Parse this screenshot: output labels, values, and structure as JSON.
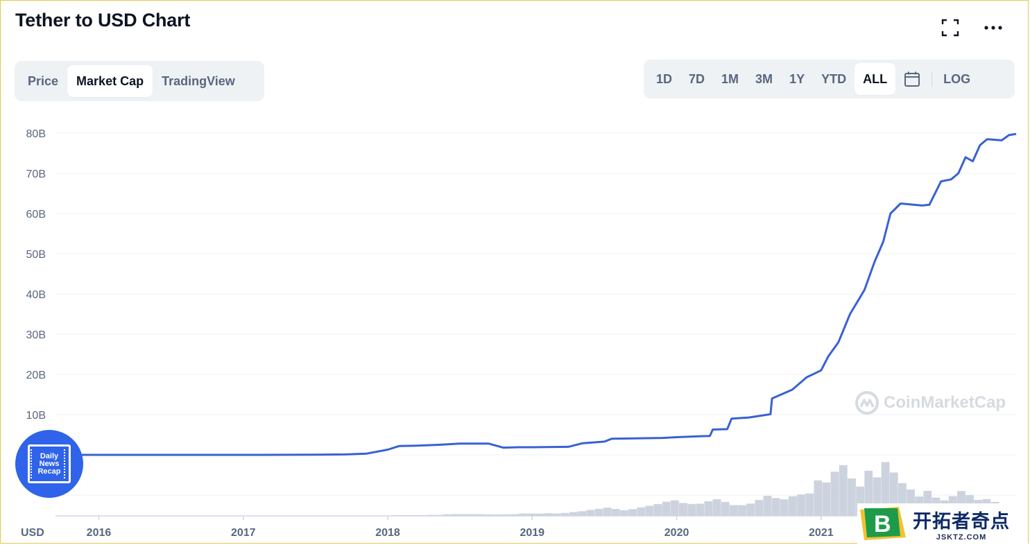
{
  "header": {
    "title": "Tether to USD Chart"
  },
  "view_tabs": [
    {
      "label": "Price",
      "active": false
    },
    {
      "label": "Market Cap",
      "active": true
    },
    {
      "label": "TradingView",
      "active": false
    }
  ],
  "range_tabs": [
    {
      "label": "1D",
      "active": false
    },
    {
      "label": "7D",
      "active": false
    },
    {
      "label": "1M",
      "active": false
    },
    {
      "label": "3M",
      "active": false
    },
    {
      "label": "1Y",
      "active": false
    },
    {
      "label": "YTD",
      "active": false
    },
    {
      "label": "ALL",
      "active": true
    }
  ],
  "log_label": "LOG",
  "icons": {
    "fullscreen": "fullscreen-icon",
    "more": "more-icon",
    "calendar": "calendar-icon"
  },
  "colors": {
    "line": "#3861d4",
    "volume": "#cdd3de",
    "grid": "#eff2f5",
    "axis_text": "#58667e"
  },
  "watermark": "CoinMarketCap",
  "badge": [
    "Daily",
    "News",
    "Recap"
  ],
  "site_badge": {
    "cn": "开拓者奇点",
    "en": "JSKTZ.COM"
  },
  "chart_data": {
    "type": "line",
    "currency_label": "USD",
    "x_ticks": [
      "2016",
      "2017",
      "2018",
      "2019",
      "2020",
      "2021"
    ],
    "y_ticks": [
      "80B",
      "70B",
      "60B",
      "50B",
      "40B",
      "30B",
      "20B",
      "10B"
    ],
    "y_tick_values": [
      80,
      70,
      60,
      50,
      40,
      30,
      20,
      10
    ],
    "ylim": [
      -10,
      80
    ],
    "xlim": [
      2015.7,
      2022.35
    ],
    "grid": true,
    "series": [
      {
        "values_in_billions": [
          [
            2015.7,
            0.0
          ],
          [
            2016.0,
            0.0
          ],
          [
            2016.5,
            0.0
          ],
          [
            2017.0,
            0.0
          ],
          [
            2017.3,
            0.02
          ],
          [
            2017.5,
            0.05
          ],
          [
            2017.7,
            0.1
          ],
          [
            2017.85,
            0.3
          ],
          [
            2018.0,
            1.3
          ],
          [
            2018.08,
            2.2
          ],
          [
            2018.2,
            2.3
          ],
          [
            2018.35,
            2.5
          ],
          [
            2018.5,
            2.8
          ],
          [
            2018.7,
            2.8
          ],
          [
            2018.8,
            1.8
          ],
          [
            2018.9,
            1.9
          ],
          [
            2019.0,
            1.9
          ],
          [
            2019.25,
            2.0
          ],
          [
            2019.35,
            2.9
          ],
          [
            2019.5,
            3.3
          ],
          [
            2019.55,
            4.0
          ],
          [
            2019.9,
            4.2
          ],
          [
            2020.0,
            4.4
          ],
          [
            2020.15,
            4.6
          ],
          [
            2020.23,
            4.7
          ],
          [
            2020.25,
            6.3
          ],
          [
            2020.35,
            6.4
          ],
          [
            2020.38,
            9.0
          ],
          [
            2020.5,
            9.3
          ],
          [
            2020.65,
            10.1
          ],
          [
            2020.66,
            14.0
          ],
          [
            2020.8,
            16.2
          ],
          [
            2020.9,
            19.3
          ],
          [
            2021.0,
            21.0
          ],
          [
            2021.05,
            24.5
          ],
          [
            2021.12,
            28.0
          ],
          [
            2021.2,
            35.0
          ],
          [
            2021.3,
            41.0
          ],
          [
            2021.37,
            48.0
          ],
          [
            2021.43,
            53.0
          ],
          [
            2021.48,
            60.0
          ],
          [
            2021.55,
            62.5
          ],
          [
            2021.7,
            62.0
          ],
          [
            2021.75,
            62.2
          ],
          [
            2021.83,
            68.0
          ],
          [
            2021.9,
            68.5
          ],
          [
            2021.95,
            70.0
          ],
          [
            2022.0,
            74.0
          ],
          [
            2022.05,
            73.0
          ],
          [
            2022.1,
            77.0
          ],
          [
            2022.15,
            78.5
          ],
          [
            2022.25,
            78.2
          ],
          [
            2022.3,
            79.5
          ],
          [
            2022.35,
            79.8
          ]
        ]
      }
    ],
    "volume": {
      "bins_start": 2015.7,
      "bins_end": 2022.35,
      "relative_heights": [
        0,
        0,
        0,
        0,
        0,
        0,
        0,
        0,
        0,
        0,
        0,
        0,
        0,
        0,
        0,
        0,
        0,
        0,
        0,
        0,
        0,
        0,
        0,
        0,
        0,
        0,
        0,
        0,
        0,
        0,
        0,
        0,
        0,
        0,
        0,
        0,
        0,
        0,
        0,
        0,
        0.01,
        0.01,
        0.01,
        0.01,
        0.02,
        0.02,
        0.03,
        0.03,
        0.03,
        0.03,
        0.03,
        0.03,
        0.03,
        0.03,
        0.03,
        0.04,
        0.04,
        0.04,
        0.05,
        0.05,
        0.06,
        0.07,
        0.08,
        0.1,
        0.12,
        0.15,
        0.14,
        0.12,
        0.13,
        0.15,
        0.17,
        0.2,
        0.25,
        0.3,
        0.28,
        0.24,
        0.22,
        0.25,
        0.28,
        0.24,
        0.2,
        0.22,
        0.26,
        0.3,
        0.35,
        0.3,
        0.28,
        0.35,
        0.42,
        0.5,
        0.7,
        0.6,
        0.75,
        0.85,
        0.65,
        0.55,
        0.95,
        0.8,
        1.0,
        0.75,
        0.55,
        0.45,
        0.35,
        0.5,
        0.4,
        0.3,
        0.35,
        0.42,
        0.35,
        0.28,
        0.32,
        0.3,
        0.25,
        0.2
      ]
    }
  }
}
